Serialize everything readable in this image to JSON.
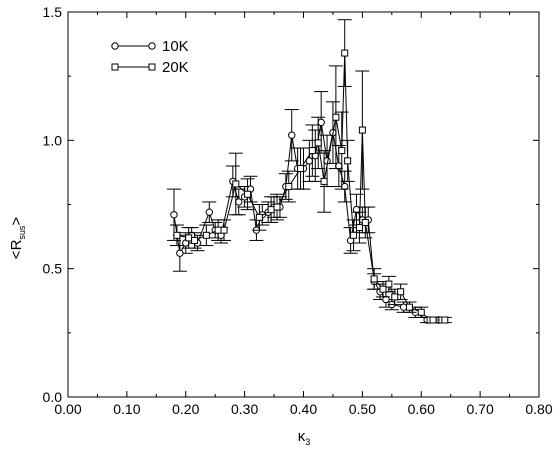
{
  "chart_data": {
    "type": "scatter",
    "title": "",
    "xlabel": "κ",
    "xlabel_sub": "3",
    "ylabel": "<R",
    "ylabel_sub": "sus",
    "ylabel_suffix": ">",
    "xlim": [
      0.0,
      0.8
    ],
    "ylim": [
      0.0,
      1.5
    ],
    "xticks": [
      0.0,
      0.1,
      0.2,
      0.3,
      0.4,
      0.5,
      0.6,
      0.7,
      0.8
    ],
    "xtick_labels": [
      "0.00",
      "0.10",
      "0.20",
      "0.30",
      "0.40",
      "0.50",
      "0.60",
      "0.70",
      "0.80"
    ],
    "yticks": [
      0.0,
      0.5,
      1.0,
      1.5
    ],
    "ytick_labels": [
      "0.0",
      "0.5",
      "1.0",
      "1.5"
    ],
    "grid": false,
    "legend_position": "top-left",
    "colors": {
      "line": "#000000",
      "axis": "#000000",
      "background": "#ffffff"
    },
    "series": [
      {
        "name": "10K",
        "marker": "circle",
        "points": [
          {
            "x": 0.18,
            "y": 0.71,
            "err": 0.1
          },
          {
            "x": 0.19,
            "y": 0.56,
            "err": 0.07
          },
          {
            "x": 0.2,
            "y": 0.6,
            "err": 0.04
          },
          {
            "x": 0.21,
            "y": 0.63,
            "err": 0.03
          },
          {
            "x": 0.22,
            "y": 0.6,
            "err": 0.03
          },
          {
            "x": 0.24,
            "y": 0.72,
            "err": 0.04
          },
          {
            "x": 0.25,
            "y": 0.65,
            "err": 0.03
          },
          {
            "x": 0.26,
            "y": 0.63,
            "err": 0.03
          },
          {
            "x": 0.28,
            "y": 0.84,
            "err": 0.06
          },
          {
            "x": 0.29,
            "y": 0.76,
            "err": 0.05
          },
          {
            "x": 0.3,
            "y": 0.78,
            "err": 0.04
          },
          {
            "x": 0.31,
            "y": 0.81,
            "err": 0.05
          },
          {
            "x": 0.32,
            "y": 0.65,
            "err": 0.04
          },
          {
            "x": 0.33,
            "y": 0.71,
            "err": 0.04
          },
          {
            "x": 0.34,
            "y": 0.72,
            "err": 0.04
          },
          {
            "x": 0.35,
            "y": 0.74,
            "err": 0.04
          },
          {
            "x": 0.36,
            "y": 0.74,
            "err": 0.04
          },
          {
            "x": 0.37,
            "y": 0.82,
            "err": 0.05
          },
          {
            "x": 0.38,
            "y": 1.02,
            "err": 0.1
          },
          {
            "x": 0.39,
            "y": 0.89,
            "err": 0.08
          },
          {
            "x": 0.4,
            "y": 0.89,
            "err": 0.08
          },
          {
            "x": 0.41,
            "y": 0.92,
            "err": 0.08
          },
          {
            "x": 0.42,
            "y": 0.94,
            "err": 0.1
          },
          {
            "x": 0.43,
            "y": 1.07,
            "err": 0.12
          },
          {
            "x": 0.44,
            "y": 0.92,
            "err": 0.1
          },
          {
            "x": 0.45,
            "y": 1.03,
            "err": 0.12
          },
          {
            "x": 0.46,
            "y": 0.9,
            "err": 0.08
          },
          {
            "x": 0.47,
            "y": 0.82,
            "err": 0.06
          },
          {
            "x": 0.48,
            "y": 0.61,
            "err": 0.05
          },
          {
            "x": 0.49,
            "y": 0.73,
            "err": 0.06
          },
          {
            "x": 0.5,
            "y": 0.69,
            "err": 0.05
          },
          {
            "x": 0.51,
            "y": 0.69,
            "err": 0.05
          },
          {
            "x": 0.52,
            "y": 0.45,
            "err": 0.03
          },
          {
            "x": 0.53,
            "y": 0.41,
            "err": 0.03
          },
          {
            "x": 0.54,
            "y": 0.38,
            "err": 0.03
          },
          {
            "x": 0.55,
            "y": 0.36,
            "err": 0.02
          },
          {
            "x": 0.57,
            "y": 0.35,
            "err": 0.02
          },
          {
            "x": 0.59,
            "y": 0.33,
            "err": 0.02
          },
          {
            "x": 0.61,
            "y": 0.3,
            "err": 0.01
          },
          {
            "x": 0.63,
            "y": 0.3,
            "err": 0.01
          }
        ]
      },
      {
        "name": "20K",
        "marker": "square",
        "points": [
          {
            "x": 0.185,
            "y": 0.63,
            "err": 0.04
          },
          {
            "x": 0.205,
            "y": 0.62,
            "err": 0.04
          },
          {
            "x": 0.215,
            "y": 0.61,
            "err": 0.03
          },
          {
            "x": 0.235,
            "y": 0.63,
            "err": 0.04
          },
          {
            "x": 0.255,
            "y": 0.65,
            "err": 0.04
          },
          {
            "x": 0.265,
            "y": 0.65,
            "err": 0.04
          },
          {
            "x": 0.285,
            "y": 0.83,
            "err": 0.12
          },
          {
            "x": 0.305,
            "y": 0.79,
            "err": 0.06
          },
          {
            "x": 0.325,
            "y": 0.7,
            "err": 0.05
          },
          {
            "x": 0.345,
            "y": 0.73,
            "err": 0.05
          },
          {
            "x": 0.355,
            "y": 0.74,
            "err": 0.05
          },
          {
            "x": 0.375,
            "y": 0.82,
            "err": 0.06
          },
          {
            "x": 0.395,
            "y": 0.89,
            "err": 0.08
          },
          {
            "x": 0.415,
            "y": 0.96,
            "err": 0.1
          },
          {
            "x": 0.425,
            "y": 0.99,
            "err": 0.1
          },
          {
            "x": 0.435,
            "y": 0.84,
            "err": 0.12
          },
          {
            "x": 0.455,
            "y": 1.09,
            "err": 0.2
          },
          {
            "x": 0.465,
            "y": 0.96,
            "err": 0.15
          },
          {
            "x": 0.47,
            "y": 1.34,
            "err": 0.13
          },
          {
            "x": 0.475,
            "y": 0.92,
            "err": 0.08
          },
          {
            "x": 0.485,
            "y": 0.63,
            "err": 0.06
          },
          {
            "x": 0.495,
            "y": 0.66,
            "err": 0.06
          },
          {
            "x": 0.5,
            "y": 1.04,
            "err": 0.23
          },
          {
            "x": 0.505,
            "y": 0.68,
            "err": 0.06
          },
          {
            "x": 0.52,
            "y": 0.46,
            "err": 0.04
          },
          {
            "x": 0.535,
            "y": 0.42,
            "err": 0.03
          },
          {
            "x": 0.545,
            "y": 0.44,
            "err": 0.03
          },
          {
            "x": 0.555,
            "y": 0.39,
            "err": 0.03
          },
          {
            "x": 0.565,
            "y": 0.41,
            "err": 0.03
          },
          {
            "x": 0.58,
            "y": 0.35,
            "err": 0.02
          },
          {
            "x": 0.6,
            "y": 0.33,
            "err": 0.02
          },
          {
            "x": 0.615,
            "y": 0.3,
            "err": 0.01
          },
          {
            "x": 0.62,
            "y": 0.3,
            "err": 0.01
          },
          {
            "x": 0.635,
            "y": 0.3,
            "err": 0.01
          },
          {
            "x": 0.64,
            "y": 0.3,
            "err": 0.01
          }
        ]
      }
    ]
  }
}
